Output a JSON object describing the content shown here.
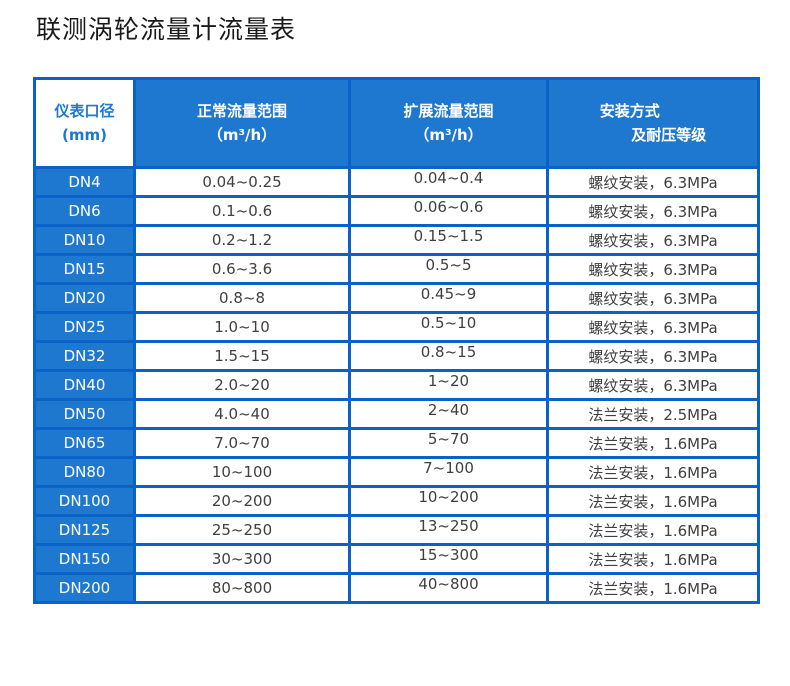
{
  "page_title": "联测涡轮流量计流量表",
  "colors": {
    "fill_blue": "#1E78CF",
    "border_blue": "#0A62C9",
    "data_text": "#3F3F3F",
    "title_text": "#1A1A1A"
  },
  "table": {
    "columns": [
      {
        "line1": "仪表口径",
        "line2": "(mm)"
      },
      {
        "line1": "正常流量范围",
        "line2": "（m³/h）"
      },
      {
        "line1": "扩展流量范围",
        "line2": "（m³/h）"
      },
      {
        "line1": "安装方式",
        "line2": "及耐压等级"
      }
    ],
    "rows": [
      {
        "dn": "DN4",
        "normal": "0.04~0.25",
        "extended": "0.04~0.4",
        "install": "螺纹安装，6.3MPa"
      },
      {
        "dn": "DN6",
        "normal": "0.1~0.6",
        "extended": "0.06~0.6",
        "install": "螺纹安装，6.3MPa"
      },
      {
        "dn": "DN10",
        "normal": "0.2~1.2",
        "extended": "0.15~1.5",
        "install": "螺纹安装，6.3MPa"
      },
      {
        "dn": "DN15",
        "normal": "0.6~3.6",
        "extended": "0.5~5",
        "install": "螺纹安装，6.3MPa"
      },
      {
        "dn": "DN20",
        "normal": "0.8~8",
        "extended": "0.45~9",
        "install": "螺纹安装，6.3MPa"
      },
      {
        "dn": "DN25",
        "normal": "1.0~10",
        "extended": "0.5~10",
        "install": "螺纹安装，6.3MPa"
      },
      {
        "dn": "DN32",
        "normal": "1.5~15",
        "extended": "0.8~15",
        "install": "螺纹安装，6.3MPa"
      },
      {
        "dn": "DN40",
        "normal": "2.0~20",
        "extended": "1~20",
        "install": "螺纹安装，6.3MPa"
      },
      {
        "dn": "DN50",
        "normal": "4.0~40",
        "extended": "2~40",
        "install": "法兰安装，2.5MPa"
      },
      {
        "dn": "DN65",
        "normal": "7.0~70",
        "extended": "5~70",
        "install": "法兰安装，1.6MPa"
      },
      {
        "dn": "DN80",
        "normal": "10~100",
        "extended": "7~100",
        "install": "法兰安装，1.6MPa"
      },
      {
        "dn": "DN100",
        "normal": "20~200",
        "extended": "10~200",
        "install": "法兰安装，1.6MPa"
      },
      {
        "dn": "DN125",
        "normal": "25~250",
        "extended": "13~250",
        "install": "法兰安装，1.6MPa"
      },
      {
        "dn": "DN150",
        "normal": "30~300",
        "extended": "15~300",
        "install": "法兰安装，1.6MPa"
      },
      {
        "dn": "DN200",
        "normal": "80~800",
        "extended": "40~800",
        "install": "法兰安装，1.6MPa"
      }
    ]
  }
}
